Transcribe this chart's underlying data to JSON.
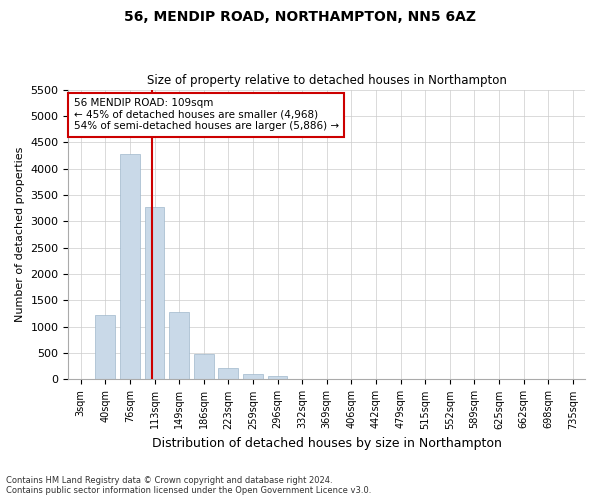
{
  "title_line1": "56, MENDIP ROAD, NORTHAMPTON, NN5 6AZ",
  "title_line2": "Size of property relative to detached houses in Northampton",
  "xlabel": "Distribution of detached houses by size in Northampton",
  "ylabel": "Number of detached properties",
  "footnote1": "Contains HM Land Registry data © Crown copyright and database right 2024.",
  "footnote2": "Contains public sector information licensed under the Open Government Licence v3.0.",
  "annotation_title": "56 MENDIP ROAD: 109sqm",
  "annotation_line1": "← 45% of detached houses are smaller (4,968)",
  "annotation_line2": "54% of semi-detached houses are larger (5,886) →",
  "property_sqm": 109,
  "bar_color": "#c9d9e8",
  "bar_edge_color": "#a0b8cc",
  "vline_color": "#cc0000",
  "annotation_box_edge": "#cc0000",
  "background_color": "#ffffff",
  "grid_color": "#cccccc",
  "categories": [
    "3sqm",
    "40sqm",
    "76sqm",
    "113sqm",
    "149sqm",
    "186sqm",
    "223sqm",
    "259sqm",
    "296sqm",
    "332sqm",
    "369sqm",
    "406sqm",
    "442sqm",
    "479sqm",
    "515sqm",
    "552sqm",
    "589sqm",
    "625sqm",
    "662sqm",
    "698sqm",
    "735sqm"
  ],
  "values": [
    0,
    1230,
    4270,
    3280,
    1280,
    480,
    210,
    100,
    60,
    0,
    0,
    0,
    0,
    0,
    0,
    0,
    0,
    0,
    0,
    0,
    0
  ],
  "ylim": [
    0,
    5500
  ],
  "yticks": [
    0,
    500,
    1000,
    1500,
    2000,
    2500,
    3000,
    3500,
    4000,
    4500,
    5000,
    5500
  ],
  "vline_x": 2.89,
  "figsize": [
    6.0,
    5.0
  ],
  "dpi": 100
}
